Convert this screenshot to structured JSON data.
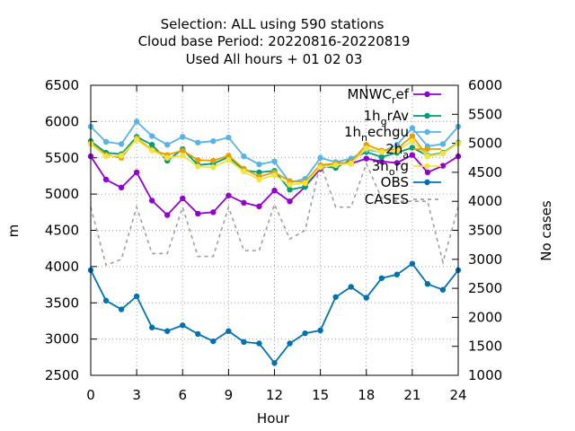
{
  "chart_data": {
    "type": "line",
    "title_lines": [
      "Selection: ALL using   590 stations",
      "Cloud base   Period: 20220816-20220819",
      "Used  All hours  + 01 02 03"
    ],
    "xlabel": "Hour",
    "ylabel": "m",
    "y2label": "No cases",
    "xlim": [
      0,
      24
    ],
    "ylim": [
      2500,
      6500
    ],
    "y2lim": [
      1000,
      6000
    ],
    "xticks": [
      "0",
      "3",
      "6",
      "9",
      "12",
      "15",
      "18",
      "21",
      "24"
    ],
    "yticks": [
      "2500",
      "3000",
      "3500",
      "4000",
      "4500",
      "5000",
      "5500",
      "6000",
      "6500"
    ],
    "y2ticks": [
      "1000",
      "1500",
      "2000",
      "2500",
      "3000",
      "3500",
      "4000",
      "4500",
      "5000",
      "5500",
      "6000"
    ],
    "grid": true,
    "legend_position": "top-right",
    "x": [
      0,
      1,
      2,
      3,
      4,
      5,
      6,
      7,
      8,
      9,
      10,
      11,
      12,
      13,
      14,
      15,
      16,
      17,
      18,
      19,
      20,
      21,
      22,
      23,
      24
    ],
    "series": [
      {
        "name": "MNWC_ref",
        "legend_main": "MNWC",
        "legend_sub": "r",
        "legend_tail": "ef",
        "color": "#9400d3",
        "marker": "circle",
        "dash": "",
        "axis": "y",
        "values": [
          5520,
          5200,
          5090,
          5300,
          4910,
          4710,
          4940,
          4730,
          4750,
          4980,
          4880,
          4830,
          5050,
          4900,
          5100,
          5350,
          5430,
          5420,
          5490,
          5450,
          5430,
          5540,
          5300,
          5390,
          5520
        ]
      },
      {
        "name": "1h_grAv",
        "legend_main": "1h",
        "legend_sub": "g",
        "legend_tail": "rAv",
        "color": "#009e73",
        "marker": "circle",
        "dash": "",
        "axis": "y",
        "values": [
          5730,
          5570,
          5550,
          5790,
          5680,
          5460,
          5620,
          5400,
          5420,
          5510,
          5330,
          5300,
          5320,
          5060,
          5100,
          5390,
          5360,
          5480,
          5580,
          5510,
          5570,
          5640,
          5530,
          5570,
          5710
        ]
      },
      {
        "name": "1h_nechgu",
        "legend_main": "1h",
        "legend_sub": "n",
        "legend_tail": "echgu",
        "color": "#56b4e9",
        "marker": "circle",
        "dash": "",
        "axis": "y",
        "values": [
          5930,
          5720,
          5690,
          6000,
          5800,
          5680,
          5790,
          5710,
          5730,
          5780,
          5520,
          5410,
          5450,
          5160,
          5210,
          5500,
          5440,
          5490,
          5610,
          5580,
          5680,
          5910,
          5660,
          5690,
          5930
        ]
      },
      {
        "name": "2h_arome",
        "legend_main": "2h",
        "legend_sub": "a",
        "legend_tail": "",
        "color": "#e69f00",
        "marker": "circle",
        "dash": "",
        "axis": "y",
        "values": [
          5700,
          5540,
          5500,
          5770,
          5610,
          5540,
          5600,
          5470,
          5460,
          5530,
          5350,
          5240,
          5300,
          5180,
          5170,
          5400,
          5420,
          5440,
          5680,
          5600,
          5620,
          5800,
          5520,
          5560,
          5700
        ]
      },
      {
        "name": "3h_org",
        "legend_main": "3h",
        "legend_sub": "o",
        "legend_tail": "rg",
        "color": "#f0e442",
        "marker": "circle",
        "dash": "",
        "axis": "y",
        "values": [
          5690,
          5520,
          5530,
          5750,
          5600,
          5500,
          5530,
          5380,
          5370,
          5470,
          5310,
          5200,
          5260,
          5130,
          5150,
          5370,
          5400,
          5420,
          5630,
          5580,
          5600,
          5730,
          5520,
          5560,
          5700
        ]
      },
      {
        "name": "OBS",
        "legend_main": "OBS",
        "legend_sub": "",
        "legend_tail": "",
        "color": "#0072b2",
        "marker": "circle",
        "dash": "",
        "axis": "y",
        "values": [
          3950,
          3530,
          3410,
          3590,
          3160,
          3110,
          3190,
          3070,
          2970,
          3110,
          2960,
          2940,
          2670,
          2940,
          3080,
          3120,
          3580,
          3720,
          3570,
          3840,
          3890,
          4040,
          3760,
          3680,
          3950
        ]
      },
      {
        "name": "CASES",
        "legend_main": "CASES",
        "legend_sub": "",
        "legend_tail": "",
        "color": "#a0a0a0",
        "marker": "none",
        "dash": "4,4",
        "axis": "y2",
        "values": [
          3900,
          2900,
          3000,
          3900,
          3100,
          3100,
          3900,
          3050,
          3050,
          3900,
          3150,
          3150,
          3950,
          3350,
          3500,
          4650,
          3900,
          3900,
          4650,
          4050,
          4000,
          4000,
          4000,
          2950,
          3900
        ]
      }
    ]
  }
}
